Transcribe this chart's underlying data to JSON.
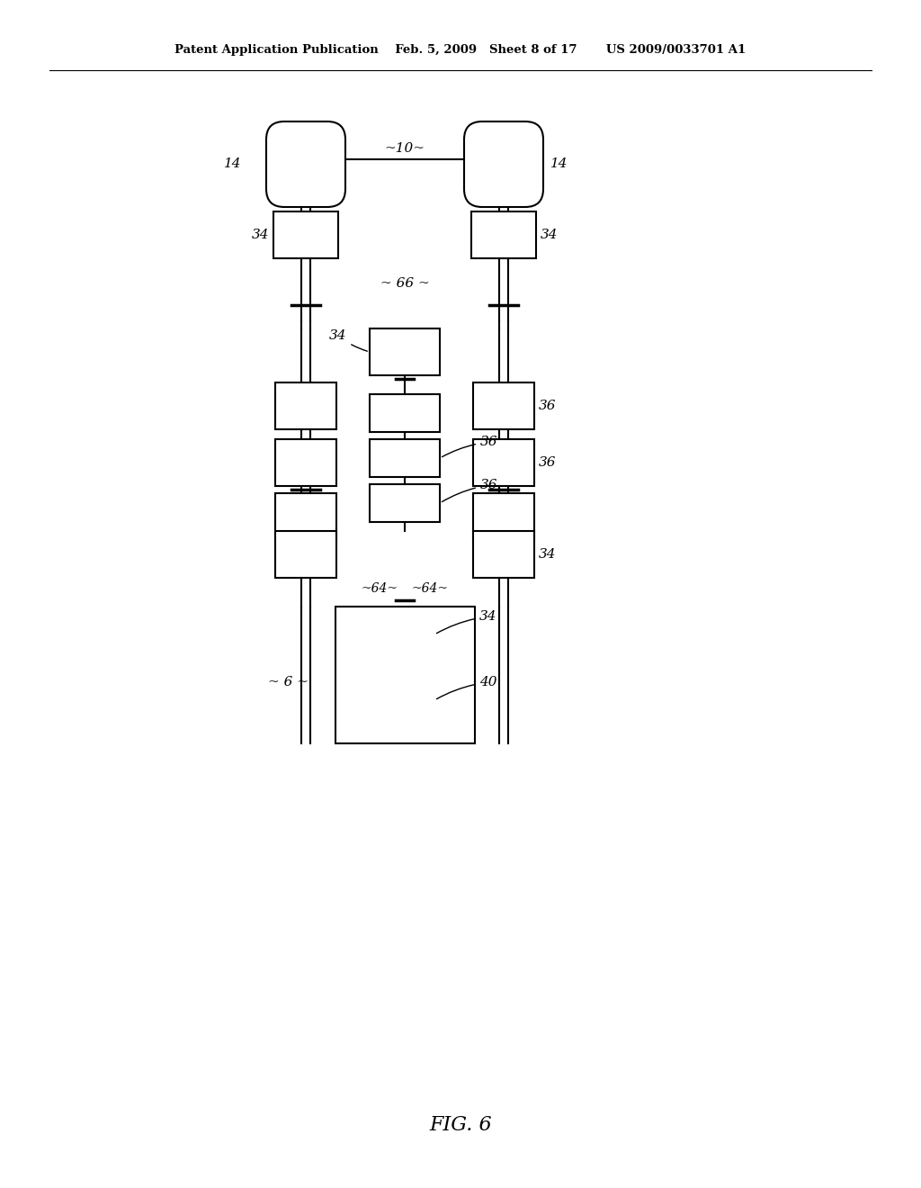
{
  "bg_color": "#ffffff",
  "line_color": "#000000",
  "header": "Patent Application Publication    Feb. 5, 2009   Sheet 8 of 17       US 2009/0033701 A1",
  "fig_label": "FIG. 6"
}
